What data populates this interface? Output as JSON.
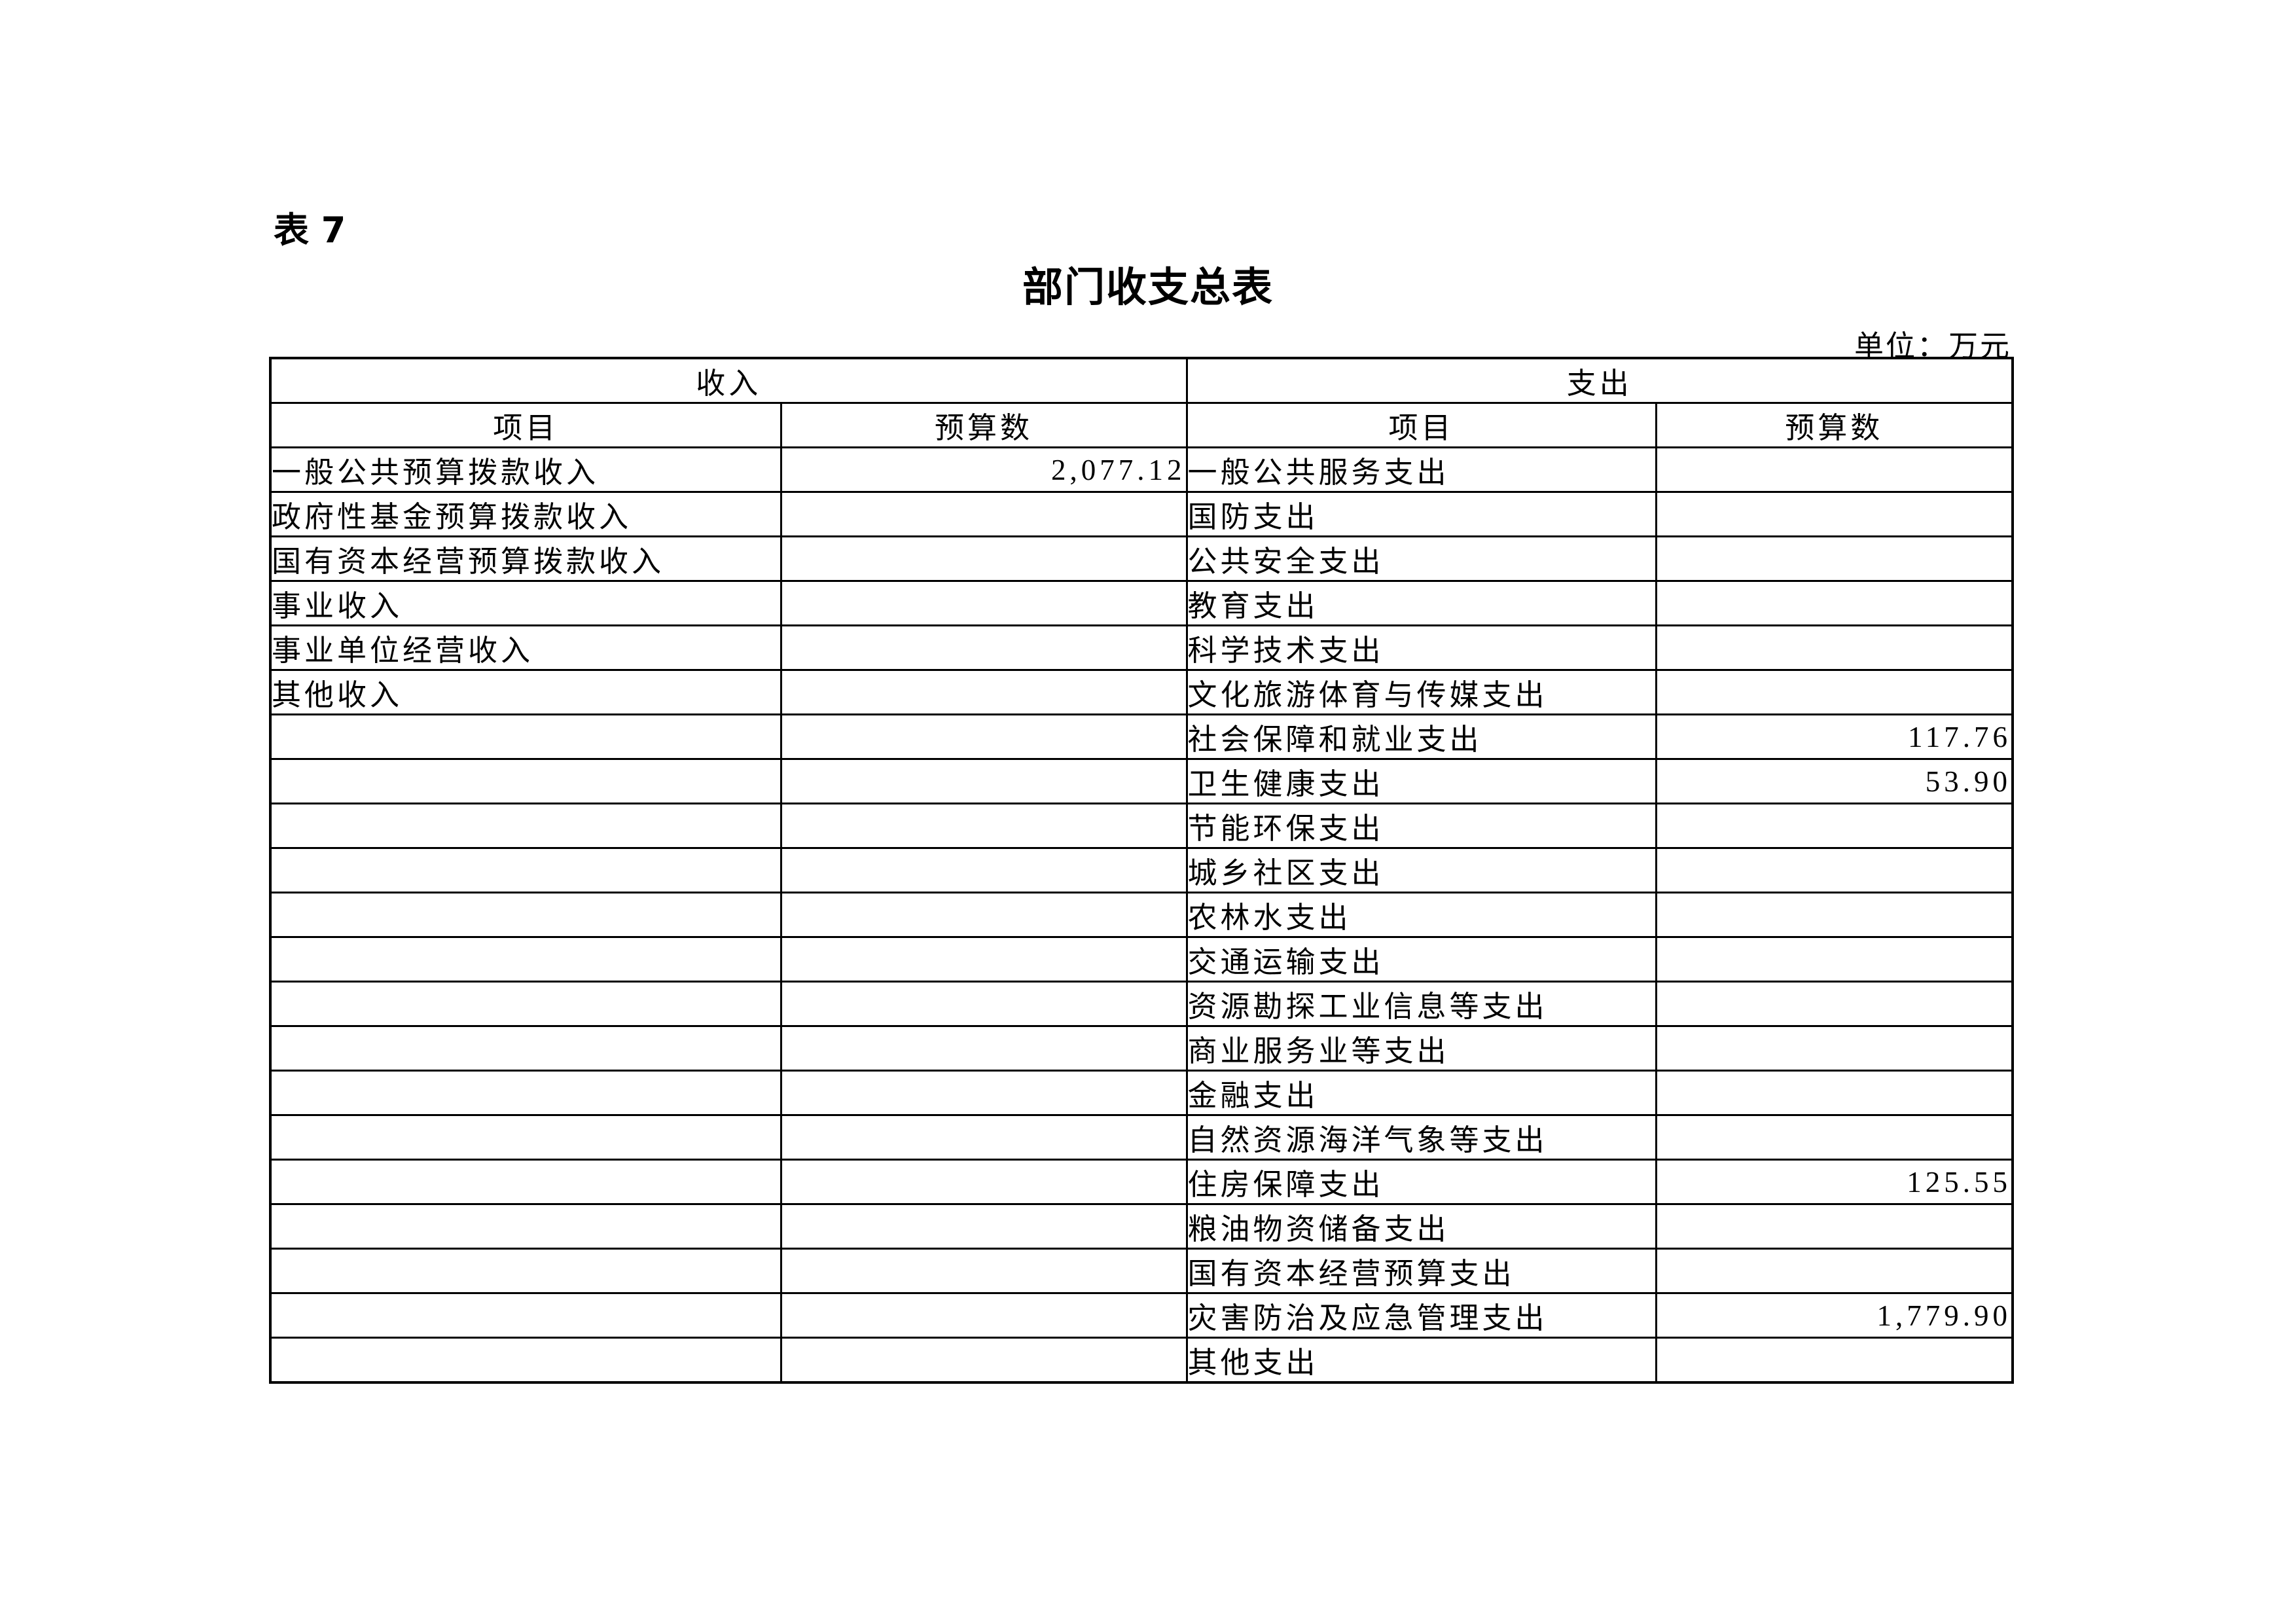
{
  "page": {
    "table_label": "表 7",
    "title": "部门收支总表",
    "unit_label": "单位：万元"
  },
  "colors": {
    "background": "#ffffff",
    "text": "#000000",
    "border": "#000000"
  },
  "table": {
    "sections": {
      "income": "收入",
      "expense": "支出"
    },
    "columns": {
      "item": "项目",
      "budget": "预算数"
    },
    "rows": [
      {
        "income_item": "一般公共预算拨款收入",
        "income_budget": "2,077.12",
        "expense_item": "一般公共服务支出",
        "expense_budget": ""
      },
      {
        "income_item": "政府性基金预算拨款收入",
        "income_budget": "",
        "expense_item": "国防支出",
        "expense_budget": ""
      },
      {
        "income_item": "国有资本经营预算拨款收入",
        "income_budget": "",
        "expense_item": "公共安全支出",
        "expense_budget": ""
      },
      {
        "income_item": "事业收入",
        "income_budget": "",
        "expense_item": "教育支出",
        "expense_budget": ""
      },
      {
        "income_item": "事业单位经营收入",
        "income_budget": "",
        "expense_item": "科学技术支出",
        "expense_budget": ""
      },
      {
        "income_item": "其他收入",
        "income_budget": "",
        "expense_item": "文化旅游体育与传媒支出",
        "expense_budget": ""
      },
      {
        "income_item": "",
        "income_budget": "",
        "expense_item": "社会保障和就业支出",
        "expense_budget": "117.76"
      },
      {
        "income_item": "",
        "income_budget": "",
        "expense_item": "卫生健康支出",
        "expense_budget": "53.90"
      },
      {
        "income_item": "",
        "income_budget": "",
        "expense_item": "节能环保支出",
        "expense_budget": ""
      },
      {
        "income_item": "",
        "income_budget": "",
        "expense_item": "城乡社区支出",
        "expense_budget": ""
      },
      {
        "income_item": "",
        "income_budget": "",
        "expense_item": "农林水支出",
        "expense_budget": ""
      },
      {
        "income_item": "",
        "income_budget": "",
        "expense_item": "交通运输支出",
        "expense_budget": ""
      },
      {
        "income_item": "",
        "income_budget": "",
        "expense_item": "资源勘探工业信息等支出",
        "expense_budget": ""
      },
      {
        "income_item": "",
        "income_budget": "",
        "expense_item": "商业服务业等支出",
        "expense_budget": ""
      },
      {
        "income_item": "",
        "income_budget": "",
        "expense_item": "金融支出",
        "expense_budget": ""
      },
      {
        "income_item": "",
        "income_budget": "",
        "expense_item": "自然资源海洋气象等支出",
        "expense_budget": ""
      },
      {
        "income_item": "",
        "income_budget": "",
        "expense_item": "住房保障支出",
        "expense_budget": "125.55"
      },
      {
        "income_item": "",
        "income_budget": "",
        "expense_item": "粮油物资储备支出",
        "expense_budget": ""
      },
      {
        "income_item": "",
        "income_budget": "",
        "expense_item": "国有资本经营预算支出",
        "expense_budget": ""
      },
      {
        "income_item": "",
        "income_budget": "",
        "expense_item": "灾害防治及应急管理支出",
        "expense_budget": "1,779.90"
      },
      {
        "income_item": "",
        "income_budget": "",
        "expense_item": "其他支出",
        "expense_budget": ""
      }
    ]
  }
}
